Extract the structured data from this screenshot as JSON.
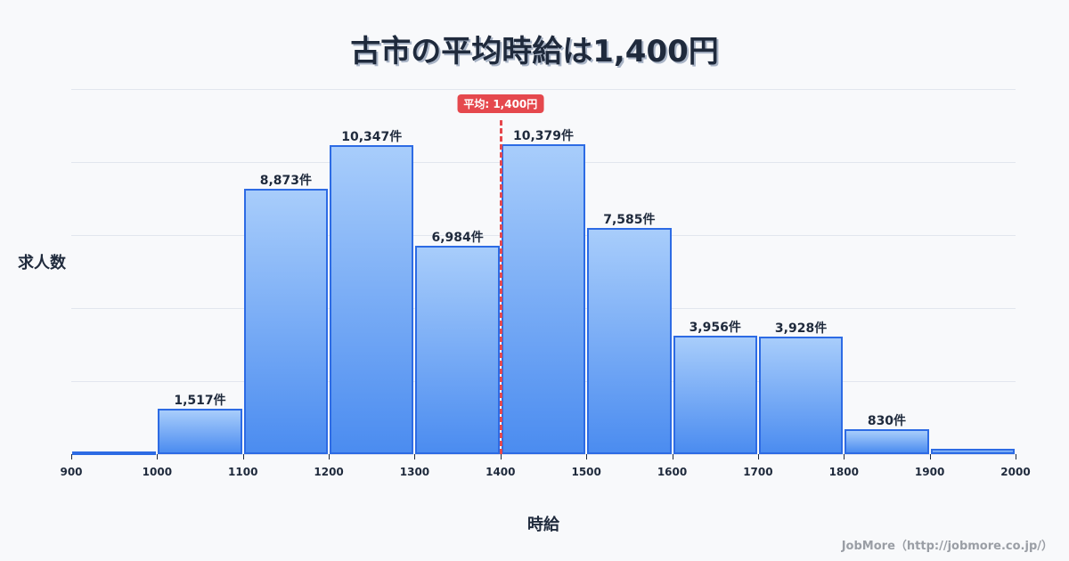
{
  "title": "古市の平均時給は1,400円",
  "ylabel": "求人数",
  "xlabel": "時給",
  "credit": "JobMore（http://jobmore.co.jp/）",
  "average": {
    "label": "平均: 1,400円",
    "value": 1400,
    "color": "#e5484d"
  },
  "colors": {
    "bar_border": "#2d6be4",
    "bar_top": "#a8cdfb",
    "bar_bottom": "#4b8cf0",
    "text": "#1f2a3c"
  },
  "chart_data": {
    "type": "bar",
    "title": "古市の平均時給は1,400円",
    "xlabel": "時給",
    "ylabel": "求人数",
    "bins": [
      [
        900,
        1000
      ],
      [
        1000,
        1100
      ],
      [
        1100,
        1200
      ],
      [
        1200,
        1300
      ],
      [
        1300,
        1400
      ],
      [
        1400,
        1500
      ],
      [
        1500,
        1600
      ],
      [
        1600,
        1700
      ],
      [
        1700,
        1800
      ],
      [
        1800,
        1900
      ],
      [
        1900,
        2000
      ]
    ],
    "categories": [
      "900-1000",
      "1000-1100",
      "1100-1200",
      "1200-1300",
      "1300-1400",
      "1400-1500",
      "1500-1600",
      "1600-1700",
      "1700-1800",
      "1800-1900",
      "1900-2000"
    ],
    "values": [
      60,
      1517,
      8873,
      10347,
      6984,
      10379,
      7585,
      3956,
      3928,
      830,
      180
    ],
    "labels": [
      "",
      "1,517件",
      "8,873件",
      "10,347件",
      "6,984件",
      "10,379件",
      "7,585件",
      "3,956件",
      "3,928件",
      "830件",
      ""
    ],
    "xticks": [
      "900",
      "1000",
      "1100",
      "1200",
      "1300",
      "1400",
      "1500",
      "1600",
      "1700",
      "1800",
      "1900",
      "2000"
    ],
    "xlim": [
      900,
      2000
    ],
    "ylim": [
      0,
      12228
    ],
    "grid": true,
    "annotations": [
      {
        "type": "vline",
        "x": 1400,
        "label": "平均: 1,400円",
        "style": "dashed",
        "color": "#e5484d"
      }
    ]
  }
}
